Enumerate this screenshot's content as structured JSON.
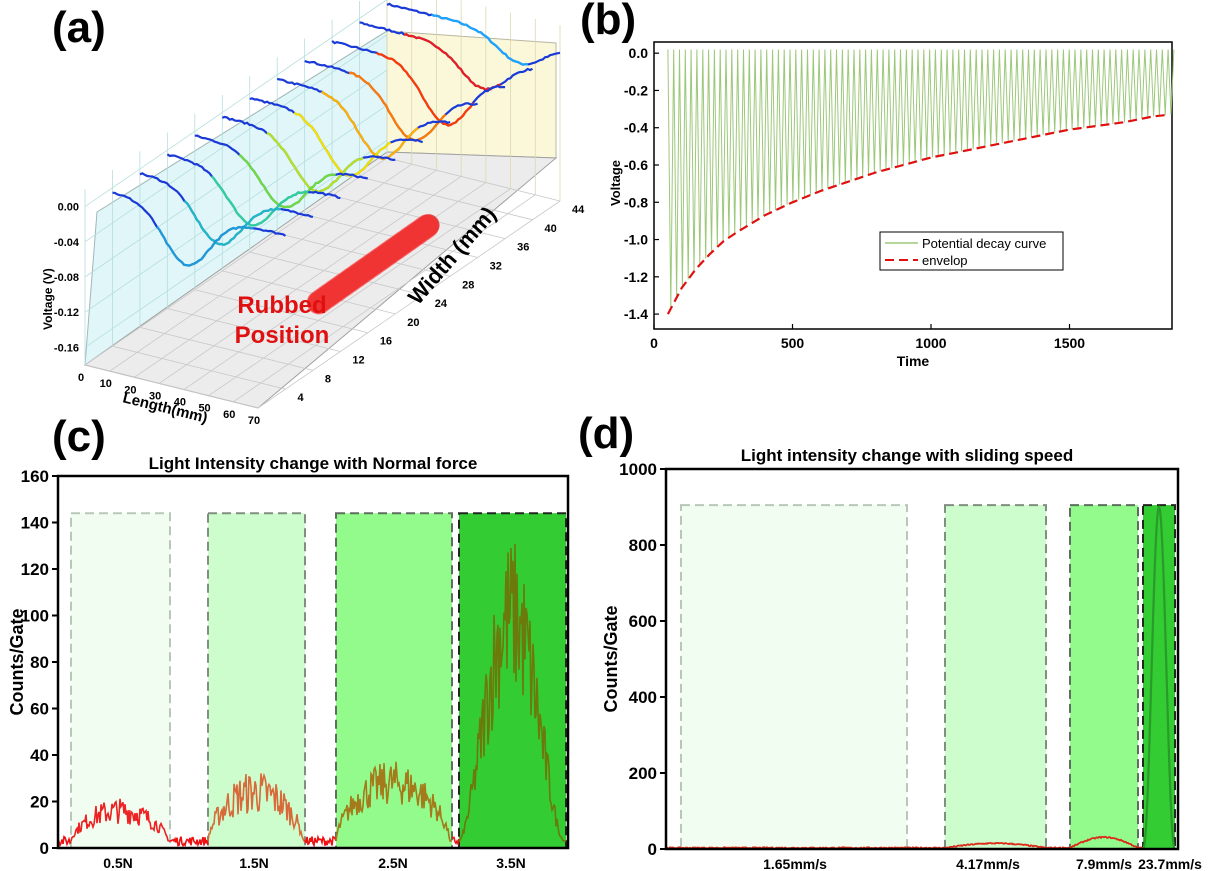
{
  "panel_labels": [
    "(a)",
    "(b)",
    "(c)",
    "(d)"
  ],
  "chart_data": [
    {
      "id": "a",
      "type": "line",
      "subtype": "3d-waterfall",
      "title": "",
      "xlabel": "Length(mm)",
      "ylabel": "Width (mm)",
      "zlabel": "Voltage (V)",
      "x_ticks": [
        "0",
        "10",
        "20",
        "30",
        "40",
        "50",
        "60",
        "70"
      ],
      "y_ticks": [
        "4",
        "8",
        "12",
        "16",
        "20",
        "24",
        "28",
        "32",
        "36",
        "40",
        "44"
      ],
      "z_ticks": [
        "0.00",
        "-0.04",
        "-0.08",
        "-0.12",
        "-0.16"
      ],
      "xlim": [
        0,
        70
      ],
      "ylim": [
        0,
        44
      ],
      "zlim": [
        -0.18,
        0.02
      ],
      "annotation": "Rubbed\nPosition",
      "annotation_lines": [
        "Rubbed",
        "Position"
      ],
      "annotation_color": "#e01010",
      "rubbed_width_range": [
        20,
        36
      ],
      "traces": [
        {
          "width": 4,
          "dip_length": 30,
          "dip_depth": -0.062,
          "color": "#1e9bd7"
        },
        {
          "width": 8,
          "dip_length": 32,
          "dip_depth": -0.058,
          "color": "#21b8c4"
        },
        {
          "width": 12,
          "dip_length": 34,
          "dip_depth": -0.056,
          "color": "#2fd19a"
        },
        {
          "width": 16,
          "dip_length": 36,
          "dip_depth": -0.056,
          "color": "#6edc3a"
        },
        {
          "width": 20,
          "dip_length": 38,
          "dip_depth": -0.058,
          "color": "#b7e21f"
        },
        {
          "width": 24,
          "dip_length": 40,
          "dip_depth": -0.06,
          "color": "#f4e200"
        },
        {
          "width": 28,
          "dip_length": 42,
          "dip_depth": -0.06,
          "color": "#ffb000"
        },
        {
          "width": 32,
          "dip_length": 44,
          "dip_depth": -0.06,
          "color": "#ff7a00"
        },
        {
          "width": 36,
          "dip_length": 46,
          "dip_depth": -0.062,
          "color": "#ff3a00"
        },
        {
          "width": 40,
          "dip_length": 50,
          "dip_depth": -0.04,
          "color": "#e81d1d"
        },
        {
          "width": 44,
          "dip_length": 54,
          "dip_depth": -0.03,
          "color": "#1aa6ff"
        }
      ]
    },
    {
      "id": "b",
      "type": "line",
      "title": "",
      "xlabel": "Time",
      "ylabel": "Voltage",
      "xlim": [
        0,
        1870
      ],
      "ylim": [
        -1.48,
        0.06
      ],
      "x_ticks": [
        0,
        500,
        1000,
        1500
      ],
      "y_ticks": [
        0.0,
        -0.2,
        -0.4,
        -0.6,
        -0.8,
        -1.0,
        -1.2,
        -1.4
      ],
      "y_tick_labels": [
        "0.0",
        "-0.2",
        "-0.4",
        "-0.6",
        "-0.8",
        "-1.0",
        "-1.2",
        "-1.4"
      ],
      "series": [
        {
          "name": "Potential decay curve",
          "color": "#9dc87a",
          "style": "solid",
          "peak_value": 0.02,
          "cycle_period": 21,
          "x_start": 50,
          "x_end": 1860
        },
        {
          "name": "envelop",
          "color": "#e01010",
          "style": "dashed",
          "x": [
            50,
            100,
            150,
            200,
            250,
            300,
            400,
            500,
            600,
            700,
            800,
            900,
            1000,
            1100,
            1200,
            1300,
            1400,
            1500,
            1600,
            1700,
            1800,
            1860
          ],
          "y": [
            -1.4,
            -1.26,
            -1.16,
            -1.08,
            -1.01,
            -0.96,
            -0.87,
            -0.8,
            -0.74,
            -0.69,
            -0.64,
            -0.6,
            -0.56,
            -0.53,
            -0.5,
            -0.47,
            -0.44,
            -0.41,
            -0.39,
            -0.37,
            -0.34,
            -0.33
          ]
        }
      ],
      "legend_position": "lower-right"
    },
    {
      "id": "c",
      "type": "area",
      "title": "Light Intensity change with Normal force",
      "xlabel": "",
      "ylabel": "Counts/Gate",
      "ylim": [
        0,
        160
      ],
      "y_ticks": [
        0,
        20,
        40,
        60,
        80,
        100,
        120,
        140,
        160
      ],
      "categories": [
        "0.5N",
        "1.5N",
        "2.5N",
        "3.5N"
      ],
      "box_height": 144,
      "box_fills": [
        "#f2fdf2",
        "#cdfccd",
        "#93fb8c",
        "#33cc33"
      ],
      "box_borders": [
        "#b8c8b8",
        "#808f80",
        "#5f6f5f",
        "#202820"
      ],
      "segment_mean_values": [
        16,
        24,
        28,
        100
      ],
      "segment_peak_values": [
        23,
        36,
        40,
        143
      ],
      "baseline_value": 3,
      "trace_colors": [
        "#ee2222",
        "#d86a3a",
        "#a47a1a",
        "#6b7a0a"
      ]
    },
    {
      "id": "d",
      "type": "area",
      "title": "Light intensity change with sliding speed",
      "xlabel": "",
      "ylabel": "Counts/Gate",
      "ylim": [
        0,
        1000
      ],
      "y_ticks": [
        0,
        200,
        400,
        600,
        800,
        1000
      ],
      "categories": [
        "1.65mm/s",
        "4.17mm/s",
        "7.9mm/s",
        "23.7mm/s"
      ],
      "box_height": 905,
      "box_fills": [
        "#f2fdf2",
        "#cdfccd",
        "#93fb8c",
        "#33cc33"
      ],
      "box_borders": [
        "#b8c8b8",
        "#808f80",
        "#5f6f5f",
        "#202820"
      ],
      "segment_peak_values": [
        6,
        12,
        28,
        900
      ],
      "trace_colors": [
        "#ee2222",
        "#d86a3a",
        "#a47a1a",
        "#2a9a2a"
      ]
    }
  ]
}
